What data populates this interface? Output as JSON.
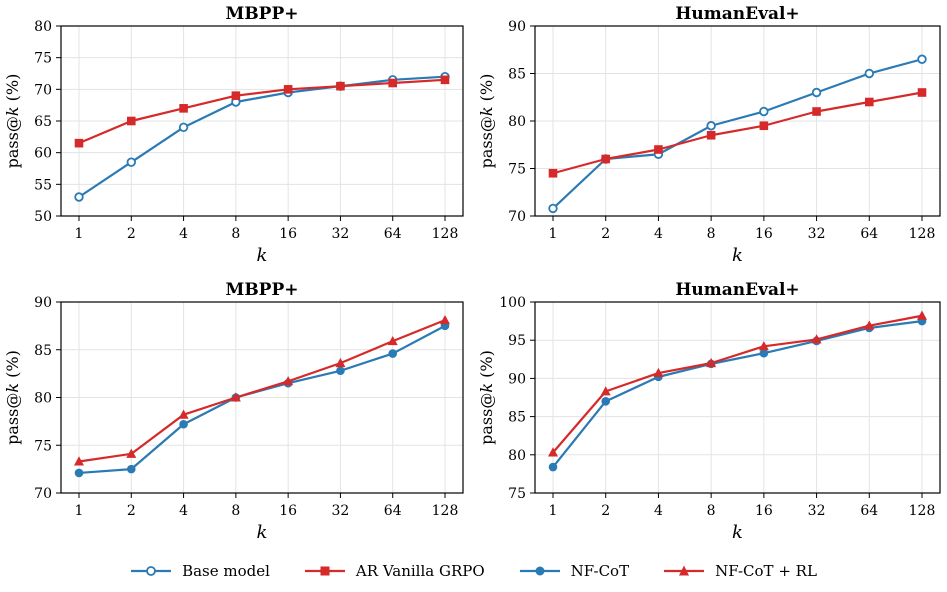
{
  "colors": {
    "blue": "#2a7ab5",
    "red": "#d62a2a"
  },
  "legend": [
    {
      "label": "Base model",
      "color": "#2a7ab5",
      "marker": "circle-open"
    },
    {
      "label": "AR Vanilla GRPO",
      "color": "#d62a2a",
      "marker": "square"
    },
    {
      "label": "NF-CoT",
      "color": "#2a7ab5",
      "marker": "circle"
    },
    {
      "label": "NF-CoT + RL",
      "color": "#d62a2a",
      "marker": "triangle"
    }
  ],
  "chart_data": [
    {
      "type": "line",
      "title": "MBPP+",
      "xlabel": "k",
      "ylabel": "pass@k (%)",
      "categories": [
        "1",
        "2",
        "4",
        "8",
        "16",
        "32",
        "64",
        "128"
      ],
      "ylim": [
        50,
        80
      ],
      "yticks": [
        50,
        55,
        60,
        65,
        70,
        75,
        80
      ],
      "grid": true,
      "series": [
        {
          "name": "Base model",
          "color": "#2a7ab5",
          "marker": "circle-open",
          "values": [
            53.0,
            58.5,
            64.0,
            68.0,
            69.5,
            70.5,
            71.5,
            72.0
          ]
        },
        {
          "name": "AR Vanilla GRPO",
          "color": "#d62a2a",
          "marker": "square",
          "values": [
            61.5,
            65.0,
            67.0,
            69.0,
            70.0,
            70.5,
            71.0,
            71.5
          ]
        }
      ]
    },
    {
      "type": "line",
      "title": "HumanEval+",
      "xlabel": "k",
      "ylabel": "pass@k (%)",
      "categories": [
        "1",
        "2",
        "4",
        "8",
        "16",
        "32",
        "64",
        "128"
      ],
      "ylim": [
        70,
        90
      ],
      "yticks": [
        70,
        75,
        80,
        85,
        90
      ],
      "grid": true,
      "series": [
        {
          "name": "Base model",
          "color": "#2a7ab5",
          "marker": "circle-open",
          "values": [
            70.8,
            76.0,
            76.5,
            79.5,
            81.0,
            83.0,
            85.0,
            86.5
          ]
        },
        {
          "name": "AR Vanilla GRPO",
          "color": "#d62a2a",
          "marker": "square",
          "values": [
            74.5,
            76.0,
            77.0,
            78.5,
            79.5,
            81.0,
            82.0,
            83.0
          ]
        }
      ]
    },
    {
      "type": "line",
      "title": "MBPP+",
      "xlabel": "k",
      "ylabel": "pass@k (%)",
      "categories": [
        "1",
        "2",
        "4",
        "8",
        "16",
        "32",
        "64",
        "128"
      ],
      "ylim": [
        70,
        90
      ],
      "yticks": [
        70,
        75,
        80,
        85,
        90
      ],
      "grid": true,
      "series": [
        {
          "name": "NF-CoT",
          "color": "#2a7ab5",
          "marker": "circle",
          "values": [
            72.1,
            72.5,
            77.2,
            80.0,
            81.5,
            82.8,
            84.6,
            87.5
          ]
        },
        {
          "name": "NF-CoT + RL",
          "color": "#d62a2a",
          "marker": "triangle",
          "values": [
            73.3,
            74.1,
            78.2,
            80.0,
            81.7,
            83.6,
            85.9,
            88.1
          ]
        }
      ]
    },
    {
      "type": "line",
      "title": "HumanEval+",
      "xlabel": "k",
      "ylabel": "pass@k (%)",
      "categories": [
        "1",
        "2",
        "4",
        "8",
        "16",
        "32",
        "64",
        "128"
      ],
      "ylim": [
        75,
        100
      ],
      "yticks": [
        75,
        80,
        85,
        90,
        95,
        100
      ],
      "grid": true,
      "series": [
        {
          "name": "NF-CoT",
          "color": "#2a7ab5",
          "marker": "circle",
          "values": [
            78.4,
            87.0,
            90.2,
            91.9,
            93.3,
            94.9,
            96.6,
            97.5
          ]
        },
        {
          "name": "NF-CoT + RL",
          "color": "#d62a2a",
          "marker": "triangle",
          "values": [
            80.3,
            88.3,
            90.7,
            92.0,
            94.2,
            95.1,
            96.9,
            98.2
          ]
        }
      ]
    }
  ]
}
